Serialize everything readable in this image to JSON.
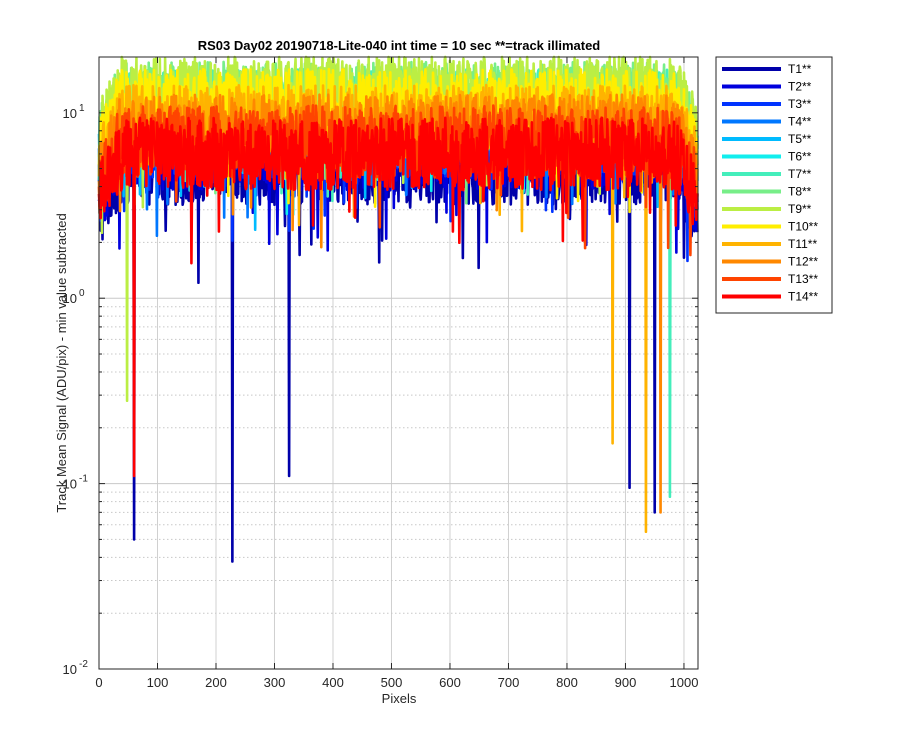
{
  "chart_data": {
    "type": "line",
    "title": "RS03 Day02 20190718-Lite-040 int time = 10 sec    **=track illimated",
    "xlabel": "Pixels",
    "ylabel": "Track Mean Signal (ADU/pix) - min value subtracted",
    "xlim": [
      0,
      1024
    ],
    "ylim": [
      0.01,
      20
    ],
    "yscale": "log",
    "grid": true,
    "legend_location": "outside-top-right",
    "x_ticks": [
      "0",
      "100",
      "200",
      "300",
      "400",
      "500",
      "600",
      "700",
      "800",
      "900",
      "1000"
    ],
    "y_tick_bases": [
      "10",
      "10",
      "10",
      "10"
    ],
    "y_tick_exponents": [
      "-2",
      "-1",
      "0",
      "1"
    ],
    "series": [
      {
        "name": "T1**",
        "color": "#0000AA",
        "values_approx": {
          "typical": 5,
          "dips": [
            [
              60,
              0.05
            ],
            [
              228,
              0.038
            ],
            [
              325,
              0.11
            ],
            [
              907,
              0.095
            ],
            [
              950,
              0.07
            ]
          ]
        }
      },
      {
        "name": "T2**",
        "color": "#0000DD",
        "values_approx": {
          "typical": 6
        }
      },
      {
        "name": "T3**",
        "color": "#0033FF",
        "values_approx": {
          "typical": 7
        }
      },
      {
        "name": "T4**",
        "color": "#0077FF",
        "values_approx": {
          "typical": 8
        }
      },
      {
        "name": "T5**",
        "color": "#00BBFF",
        "values_approx": {
          "typical": 9
        }
      },
      {
        "name": "T6**",
        "color": "#11EEEE",
        "values_approx": {
          "typical": 10
        }
      },
      {
        "name": "T7**",
        "color": "#44EEBB",
        "values_approx": {
          "typical": 11,
          "dips": [
            [
              976,
              0.085
            ]
          ]
        }
      },
      {
        "name": "T8**",
        "color": "#77EE88",
        "values_approx": {
          "typical": 12
        }
      },
      {
        "name": "T9**",
        "color": "#BBEE44",
        "values_approx": {
          "typical": 13,
          "dips": [
            [
              48,
              0.28
            ]
          ]
        }
      },
      {
        "name": "T10**",
        "color": "#FFEE00",
        "values_approx": {
          "typical": 11
        }
      },
      {
        "name": "T11**",
        "color": "#FFB300",
        "values_approx": {
          "typical": 9,
          "dips": [
            [
              878,
              0.165
            ],
            [
              935,
              0.055
            ]
          ]
        }
      },
      {
        "name": "T12**",
        "color": "#FF8800",
        "values_approx": {
          "typical": 8,
          "dips": [
            [
              960,
              0.07
            ]
          ]
        }
      },
      {
        "name": "T13**",
        "color": "#FF4400",
        "values_approx": {
          "typical": 7
        }
      },
      {
        "name": "T14**",
        "color": "#FF0000",
        "values_approx": {
          "typical": 6,
          "dips": [
            [
              60,
              0.11
            ]
          ]
        }
      }
    ]
  }
}
